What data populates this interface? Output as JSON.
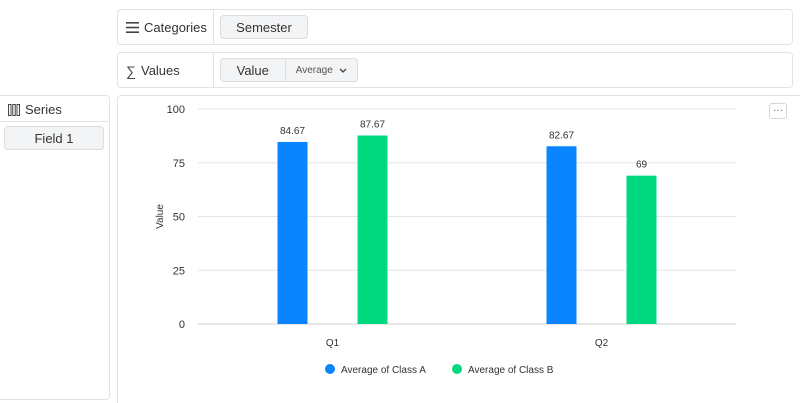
{
  "categories_row": {
    "label": "Categories",
    "field": "Semester"
  },
  "values_row": {
    "label": "Values",
    "field": "Value",
    "aggregation": "Average"
  },
  "series_panel": {
    "label": "Series",
    "field": "Field 1"
  },
  "chart_menu": {
    "label": "···"
  },
  "colors": {
    "class_a": "#0a84ff",
    "class_b": "#00d97f",
    "grid": "#e6e6e6",
    "axis_text": "#333333"
  },
  "chart_data": {
    "type": "bar",
    "categories": [
      "Q1",
      "Q2"
    ],
    "series": [
      {
        "name": "Average of Class A",
        "values": [
          84.67,
          82.67
        ]
      },
      {
        "name": "Average of Class B",
        "values": [
          87.67,
          69
        ]
      }
    ],
    "data_labels": [
      [
        "84.67",
        "82.67"
      ],
      [
        "87.67",
        "69"
      ]
    ],
    "ylabel": "Value",
    "ylim": [
      0,
      100
    ],
    "yticks": [
      0,
      25,
      50,
      75,
      100
    ],
    "grid": true,
    "legend_position": "bottom-center"
  }
}
